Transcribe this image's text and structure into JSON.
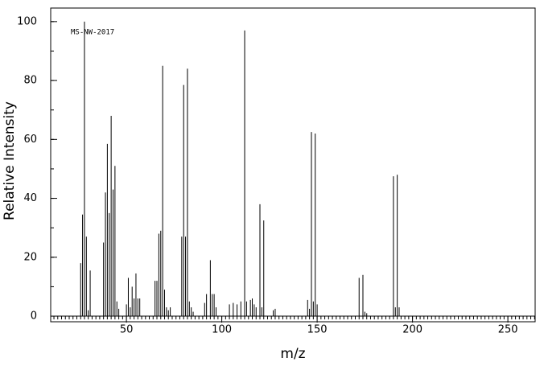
{
  "chart_data": {
    "type": "stem",
    "annotation": "MS-NW-2017",
    "x_label": "m/z",
    "y_label": "Relative Intensity",
    "xlim": [
      10.3,
      264.3
    ],
    "ylim": [
      -1.9,
      104.6
    ],
    "xticks": [
      50,
      100,
      150,
      200,
      250
    ],
    "yticks": [
      0,
      20,
      40,
      60,
      80,
      100
    ],
    "color": "#000000",
    "x": [
      26,
      27,
      28,
      29,
      30,
      31,
      38,
      39,
      40,
      41,
      42,
      43,
      44,
      45,
      46,
      50,
      51,
      52,
      53,
      54,
      55,
      56,
      57,
      65,
      66,
      67,
      68,
      69,
      70,
      71,
      72,
      73,
      79,
      80,
      81,
      82,
      83,
      84,
      85,
      91,
      92,
      94,
      95,
      96,
      97,
      104,
      106,
      108,
      110,
      112,
      113,
      115,
      116,
      117,
      118,
      120,
      121,
      122,
      127,
      128,
      145,
      146,
      147,
      148,
      149,
      150,
      172,
      174,
      175,
      176,
      190,
      191,
      192,
      193
    ],
    "values": [
      18,
      34.5,
      100,
      27,
      2,
      15.5,
      25,
      42,
      58.5,
      35,
      68,
      43,
      51,
      5,
      2.5,
      4,
      13,
      3,
      10,
      6,
      14.5,
      6,
      6,
      12,
      12,
      28,
      29,
      85,
      9,
      3,
      2,
      3,
      27,
      78.5,
      27,
      84,
      5,
      3,
      1.5,
      4.5,
      7.5,
      19,
      7.5,
      7.5,
      3,
      4,
      4.5,
      4,
      5,
      97,
      5,
      5.5,
      6,
      4,
      3,
      38,
      3,
      32.5,
      2,
      2.5,
      5.5,
      2.5,
      62.5,
      5,
      62,
      4,
      13,
      14,
      1.5,
      1,
      47.5,
      3,
      48,
      3
    ]
  }
}
